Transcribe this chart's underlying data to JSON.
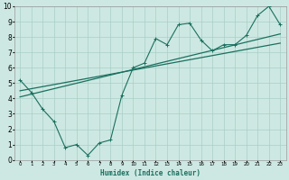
{
  "xlabel": "Humidex (Indice chaleur)",
  "bg_color": "#cde8e2",
  "grid_color": "#a8cfc8",
  "line_color": "#1a7060",
  "xlim": [
    -0.5,
    23.5
  ],
  "ylim": [
    0,
    10
  ],
  "xticks": [
    0,
    1,
    2,
    3,
    4,
    5,
    6,
    7,
    8,
    9,
    10,
    11,
    12,
    13,
    14,
    15,
    16,
    17,
    18,
    19,
    20,
    21,
    22,
    23
  ],
  "yticks": [
    0,
    1,
    2,
    3,
    4,
    5,
    6,
    7,
    8,
    9,
    10
  ],
  "line1_x": [
    0,
    1,
    2,
    3,
    4,
    5,
    6,
    7,
    8,
    9,
    10,
    11,
    12,
    13,
    14,
    15,
    16,
    17,
    18,
    19,
    20,
    21,
    22,
    23
  ],
  "line1_y": [
    5.2,
    4.4,
    3.3,
    2.5,
    0.8,
    1.0,
    0.3,
    1.1,
    1.3,
    4.2,
    6.0,
    6.3,
    7.9,
    7.5,
    8.8,
    8.9,
    7.8,
    7.1,
    7.5,
    7.5,
    8.1,
    9.4,
    10.0,
    8.8
  ],
  "line2_x": [
    0,
    23
  ],
  "line2_y": [
    4.5,
    7.6
  ],
  "line3_x": [
    0,
    23
  ],
  "line3_y": [
    4.1,
    8.2
  ]
}
